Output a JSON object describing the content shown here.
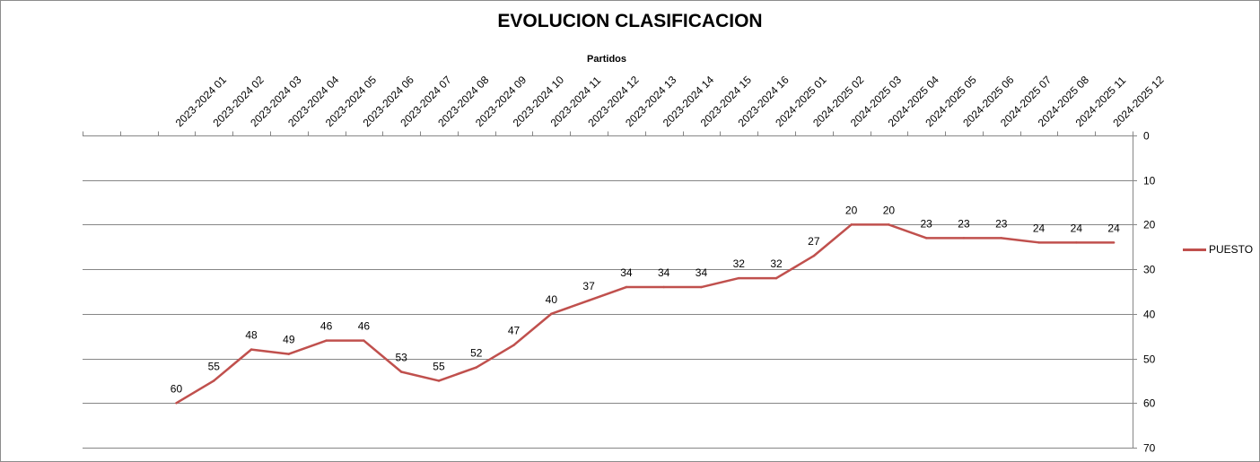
{
  "chart_data": {
    "type": "line",
    "title": "EVOLUCION CLASIFICACION",
    "xlabel": "Partidos",
    "ylabel": "",
    "ylim": [
      0,
      70
    ],
    "y_inverted": true,
    "y_ticks": [
      0,
      10,
      20,
      30,
      40,
      50,
      60,
      70
    ],
    "grid": true,
    "x_axis_position": "top",
    "y_axis_position": "right",
    "legend_position": "right",
    "categories": [
      "",
      "",
      "2023-2024 01",
      "2023-2024 02",
      "2023-2024 03",
      "2023-2024 04",
      "2023-2024 05",
      "2023-2024 06",
      "2023-2024 07",
      "2023-2024 08",
      "2023-2024 09",
      "2023-2024 10",
      "2023-2024 11",
      "2023-2024 12",
      "2023-2024 13",
      "2023-2024 14",
      "2023-2024 15",
      "2023-2024 16",
      "2024-2025 01",
      "2024-2025 02",
      "2024-2025 03",
      "2024-2025 04",
      "2024-2025 05",
      "2024-2025 06",
      "2024-2025 07",
      "2024-2025 08",
      "2024-2025 11",
      "2024-2025 12"
    ],
    "series": [
      {
        "name": "PUESTO",
        "color": "#c0504d",
        "values": [
          null,
          null,
          60,
          55,
          48,
          49,
          46,
          46,
          53,
          55,
          52,
          47,
          40,
          37,
          34,
          34,
          34,
          32,
          32,
          27,
          20,
          20,
          23,
          23,
          23,
          24,
          24,
          24
        ]
      }
    ]
  }
}
